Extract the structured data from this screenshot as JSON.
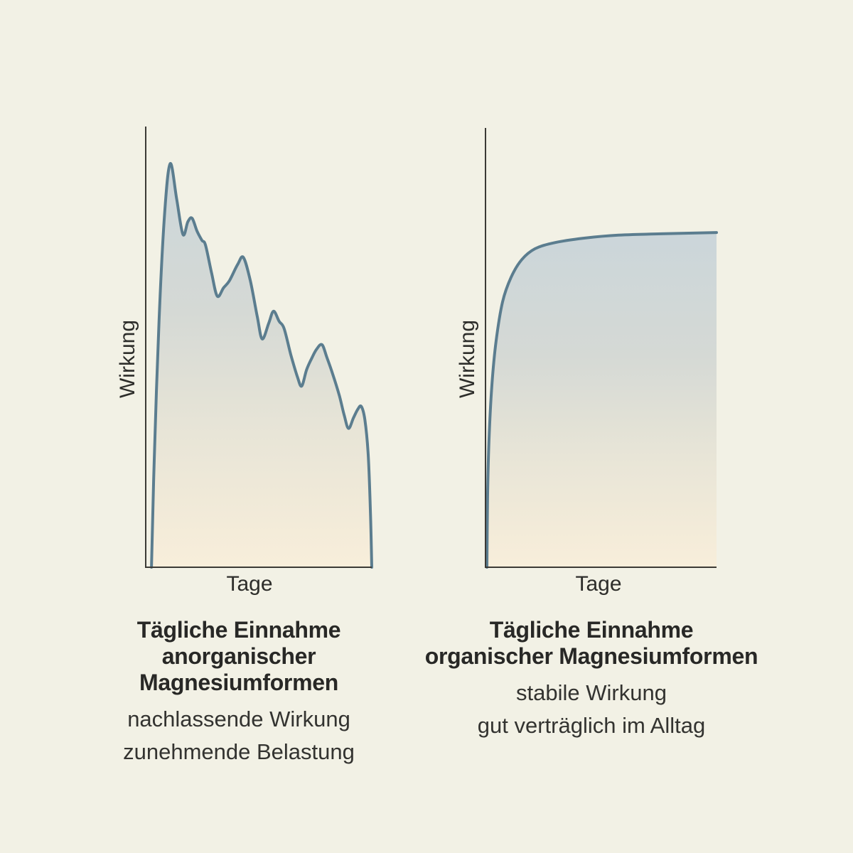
{
  "background": "#f2f1e5",
  "colors": {
    "stroke": "#5b7d8f",
    "axis": "#3b3a35",
    "text": "#2d2d2a",
    "fill_stops": [
      "#cbd6da",
      "#d5d9d5",
      "#e8e5d7",
      "#f8eeda"
    ]
  },
  "chart_data": [
    {
      "type": "area",
      "title": "Tägliche Einnahme anorganischer Magnesiumformen",
      "title_lines": [
        "Tägliche Einnahme",
        "anorganischer Magnesiumformen"
      ],
      "caption_lines": [
        "nachlassende Wirkung",
        "zunehmende Belastung"
      ],
      "xlabel": "Tage",
      "ylabel": "Wirkung",
      "x_axis_ticks": [],
      "y_axis_ticks": [],
      "description": "jagged sawtooth curve: sharp initial peak then stepwise declining effect over days",
      "points": [
        [
          0.013,
          0.0
        ],
        [
          0.025,
          0.239
        ],
        [
          0.047,
          0.561
        ],
        [
          0.072,
          0.803
        ],
        [
          0.097,
          0.916
        ],
        [
          0.126,
          0.835
        ],
        [
          0.154,
          0.755
        ],
        [
          0.176,
          0.784
        ],
        [
          0.195,
          0.792
        ],
        [
          0.217,
          0.763
        ],
        [
          0.239,
          0.742
        ],
        [
          0.255,
          0.731
        ],
        [
          0.283,
          0.666
        ],
        [
          0.308,
          0.615
        ],
        [
          0.336,
          0.634
        ],
        [
          0.362,
          0.65
        ],
        [
          0.399,
          0.687
        ],
        [
          0.425,
          0.703
        ],
        [
          0.456,
          0.65
        ],
        [
          0.487,
          0.569
        ],
        [
          0.509,
          0.518
        ],
        [
          0.538,
          0.553
        ],
        [
          0.56,
          0.581
        ],
        [
          0.585,
          0.558
        ],
        [
          0.607,
          0.542
        ],
        [
          0.638,
          0.481
        ],
        [
          0.667,
          0.432
        ],
        [
          0.686,
          0.411
        ],
        [
          0.708,
          0.448
        ],
        [
          0.73,
          0.473
        ],
        [
          0.752,
          0.494
        ],
        [
          0.777,
          0.505
        ],
        [
          0.799,
          0.476
        ],
        [
          0.824,
          0.44
        ],
        [
          0.855,
          0.389
        ],
        [
          0.877,
          0.344
        ],
        [
          0.896,
          0.315
        ],
        [
          0.918,
          0.339
        ],
        [
          0.937,
          0.358
        ],
        [
          0.953,
          0.365
        ],
        [
          0.969,
          0.335
        ],
        [
          0.984,
          0.255
        ],
        [
          0.994,
          0.126
        ],
        [
          1.0,
          0.0
        ]
      ]
    },
    {
      "type": "area",
      "title": "Tägliche Einnahme organischer Magnesiumformen",
      "title_lines": [
        "Tägliche Einnahme",
        "organischer Magnesiumformen"
      ],
      "caption_lines": [
        "stabile Wirkung",
        "gut verträglich im Alltag"
      ],
      "xlabel": "Tage",
      "ylabel": "Wirkung",
      "x_axis_ticks": [],
      "y_axis_ticks": [],
      "description": "smooth saturation curve: fast rise then stable plateau of effect over days",
      "points": [
        [
          0.003,
          0.0
        ],
        [
          0.006,
          0.159
        ],
        [
          0.012,
          0.288
        ],
        [
          0.025,
          0.417
        ],
        [
          0.043,
          0.515
        ],
        [
          0.071,
          0.604
        ],
        [
          0.108,
          0.66
        ],
        [
          0.154,
          0.7
        ],
        [
          0.212,
          0.725
        ],
        [
          0.298,
          0.739
        ],
        [
          0.422,
          0.749
        ],
        [
          0.575,
          0.756
        ],
        [
          0.76,
          0.759
        ],
        [
          1.0,
          0.762
        ]
      ]
    }
  ]
}
